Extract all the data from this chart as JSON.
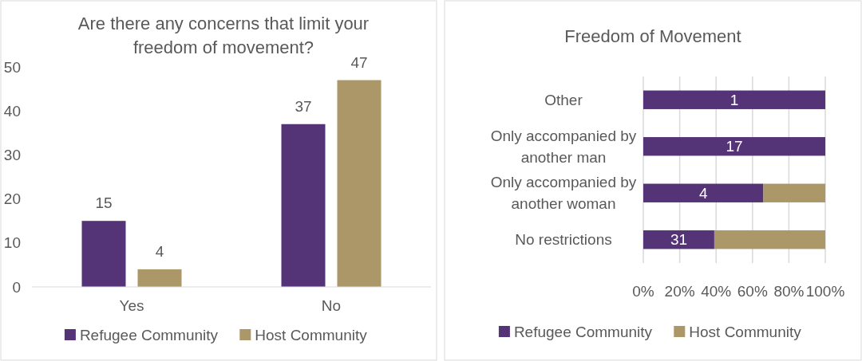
{
  "chart_data": [
    {
      "type": "bar",
      "title": "Are there any concerns that limit your freedom of movement?",
      "categories": [
        "Yes",
        "No"
      ],
      "series": [
        {
          "name": "Refugee Community",
          "color": "#543476",
          "values": [
            15,
            37
          ]
        },
        {
          "name": "Host Community",
          "color": "#ab9767",
          "values": [
            4,
            47
          ]
        }
      ],
      "ylim": [
        0,
        50
      ],
      "yticks": [
        0,
        10,
        20,
        30,
        40,
        50
      ],
      "data_labels": true,
      "legend": "bottom"
    },
    {
      "type": "bar",
      "title": "Freedom of Movement",
      "orientation": "horizontal",
      "stacked": true,
      "categories": [
        "Other",
        "Only accompanied by another man",
        "Only accompanied by another woman",
        "No restrictions"
      ],
      "series": [
        {
          "name": "Refugee Community",
          "color": "#543476",
          "values": [
            100,
            100,
            66,
            39
          ]
        },
        {
          "name": "Host Community",
          "color": "#ab9767",
          "values": [
            0,
            0,
            34,
            61
          ]
        }
      ],
      "annotations": [
        "1",
        "17",
        "4",
        "31"
      ],
      "xlim": [
        0,
        100
      ],
      "xticks": [
        {
          "value": 0,
          "label": "0%"
        },
        {
          "value": 20,
          "label": "20%"
        },
        {
          "value": 40,
          "label": "40%"
        },
        {
          "value": 60,
          "label": "60%"
        },
        {
          "value": 80,
          "label": "80%"
        },
        {
          "value": 100,
          "label": "100%"
        }
      ],
      "grid": "x",
      "legend": "bottom"
    }
  ]
}
